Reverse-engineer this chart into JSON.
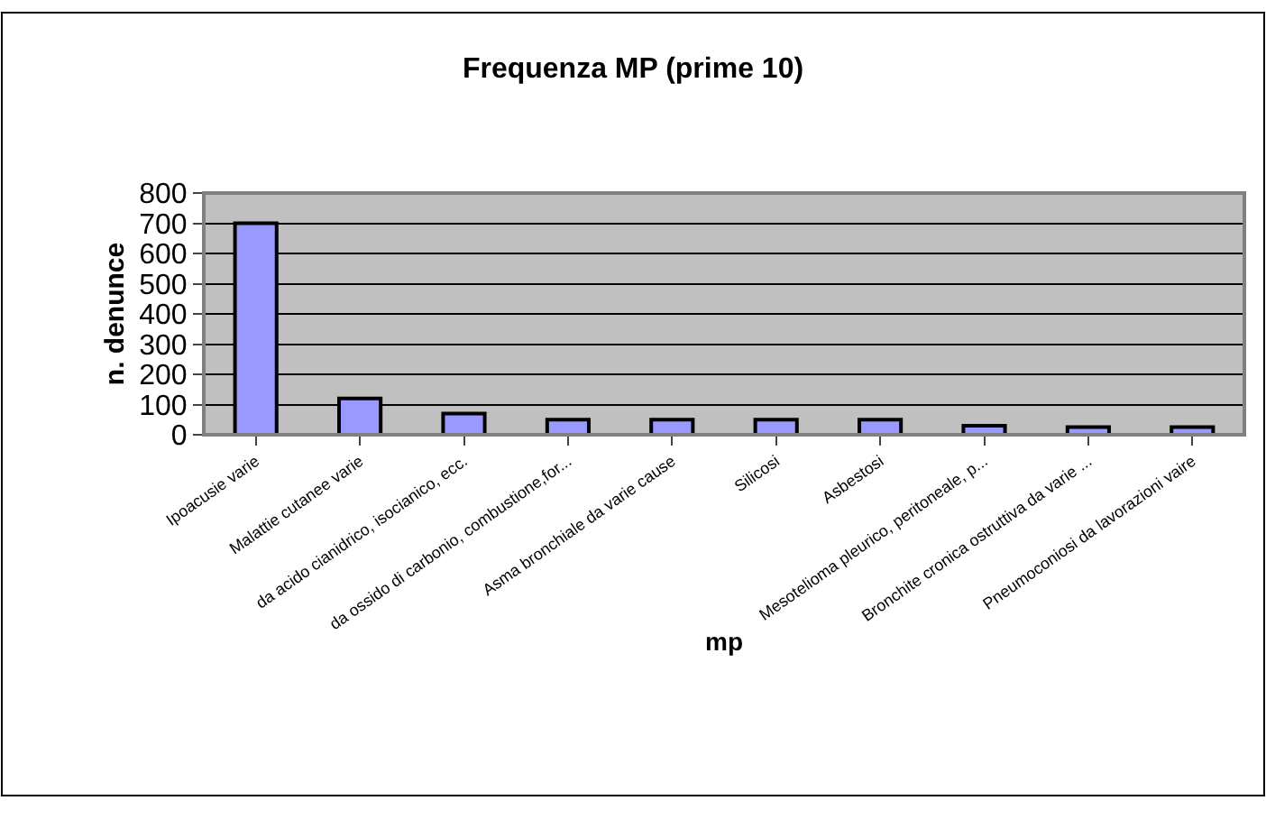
{
  "chart_data": {
    "type": "bar",
    "title": "Frequenza MP (prime 10)",
    "xlabel": "mp",
    "ylabel": "n. denunce",
    "categories": [
      "Ipoacusie varie",
      "Malattie cutanee varie",
      "da acido cianidrico, isocianico, ecc.",
      "da ossido di carbonio, combustione,for...",
      "Asma bronchiale da varie cause",
      "Silicosi",
      "Asbestosi",
      "Mesotelioma pleurico, peritoneale, p...",
      "Bronchite cronica ostruttiva da varie ...",
      "Pneumoconiosi da lavorazioni vaire"
    ],
    "values": [
      700,
      120,
      70,
      50,
      50,
      50,
      50,
      30,
      25,
      25
    ],
    "color": "#9999ff",
    "ylim": [
      0,
      800
    ],
    "yticks": [
      0,
      100,
      200,
      300,
      400,
      500,
      600,
      700,
      800
    ],
    "grid": "y"
  }
}
